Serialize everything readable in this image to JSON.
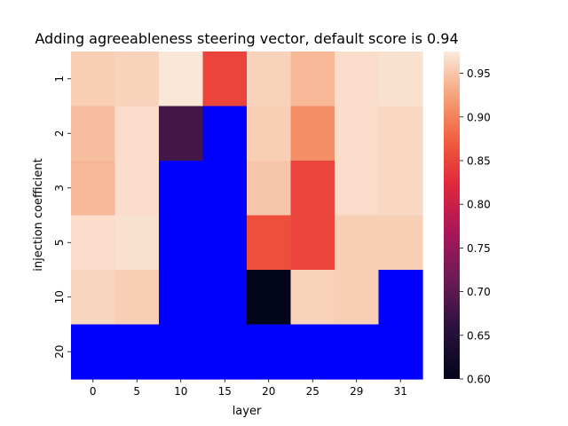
{
  "chart_data": {
    "type": "heatmap",
    "title": "Adding agreeableness steering vector, default score is 0.94",
    "xlabel": "layer",
    "ylabel": "injection coefficient",
    "x_categories": [
      "0",
      "5",
      "10",
      "15",
      "20",
      "25",
      "29",
      "31"
    ],
    "y_categories": [
      "1",
      "2",
      "3",
      "5",
      "10",
      "20"
    ],
    "missing_color": "#0000ff",
    "values": [
      [
        0.955,
        0.958,
        0.972,
        0.85,
        0.958,
        0.94,
        0.965,
        0.968
      ],
      [
        0.945,
        0.965,
        0.68,
        null,
        0.955,
        0.91,
        0.965,
        0.962
      ],
      [
        0.94,
        0.965,
        null,
        null,
        0.95,
        0.85,
        0.965,
        0.962
      ],
      [
        0.965,
        0.968,
        null,
        null,
        0.86,
        0.85,
        0.955,
        0.955
      ],
      [
        0.96,
        0.955,
        null,
        null,
        0.6,
        0.958,
        0.955,
        null
      ],
      [
        null,
        null,
        null,
        null,
        null,
        null,
        null,
        null
      ]
    ],
    "colorbar": {
      "vmin": 0.6,
      "vmax": 0.975,
      "colormap": "rocket",
      "ticks": [
        "0.60",
        "0.65",
        "0.70",
        "0.75",
        "0.80",
        "0.85",
        "0.90",
        "0.95"
      ]
    }
  }
}
